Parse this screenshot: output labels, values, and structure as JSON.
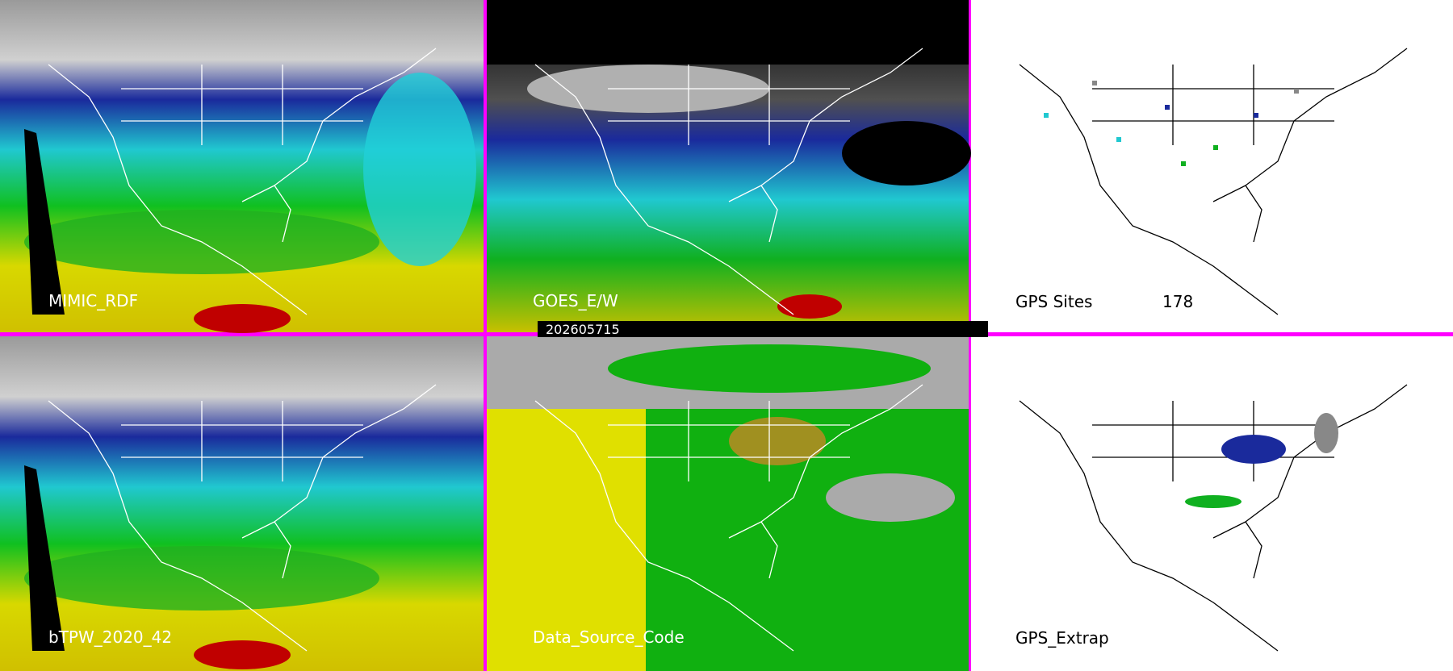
{
  "panels": [
    {
      "label": "MIMIC_RDF"
    },
    {
      "label": "GOES_E/W"
    },
    {
      "label": "GPS Sites",
      "count": 178
    },
    {
      "label": "bTPW_2020_42"
    },
    {
      "label": "Data_Source_Code"
    },
    {
      "label": "GPS_Extrap"
    }
  ],
  "timestamp": "202605715"
}
